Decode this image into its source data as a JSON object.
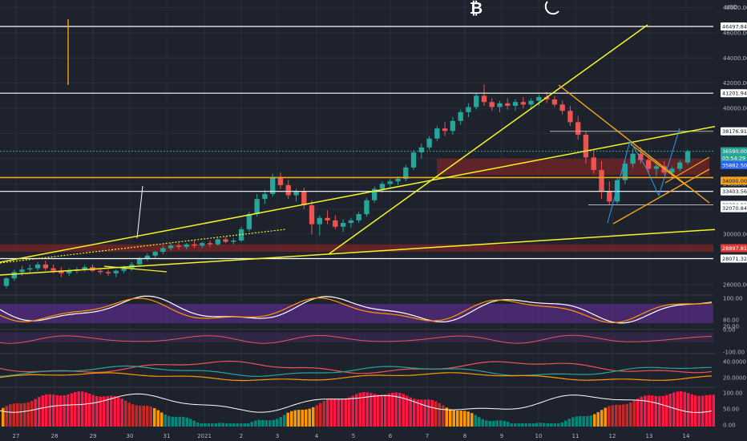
{
  "header": {
    "unit_label": "USD"
  },
  "icons": {
    "bitcoin": "bitcoin-icon",
    "moon": "moon-icon"
  },
  "colors": {
    "background": "#1e222d",
    "up": "#26a69a",
    "down": "#ef5350",
    "yellow_line": "#f5f527",
    "orange_line": "#f7a21b",
    "white_line": "#ffffff",
    "zone_fill": "#7a2525"
  },
  "chart_data": [
    {
      "type": "candlestick",
      "title": "",
      "price_axis": {
        "ticks": [
          {
            "label": "48000.00",
            "value": 48000
          },
          {
            "label": "46000.00",
            "value": 46000
          },
          {
            "label": "44000.00",
            "value": 44000
          },
          {
            "label": "42000.00",
            "value": 42000
          },
          {
            "label": "40000.00",
            "value": 40000
          },
          {
            "label": "38000.00",
            "value": 38000
          },
          {
            "label": "36000.00",
            "value": 36000
          },
          {
            "label": "34000.00",
            "value": 34000
          },
          {
            "label": "32000.00",
            "value": 32000
          },
          {
            "label": "30000.00",
            "value": 30000
          },
          {
            "label": "28000.00",
            "value": 28000
          },
          {
            "label": "26000.00",
            "value": 26000
          }
        ],
        "ylim": [
          25300,
          48600
        ]
      },
      "date_axis": [
        "27",
        "28",
        "29",
        "30",
        "31",
        "2021",
        "2",
        "3",
        "4",
        "5",
        "6",
        "7",
        "8",
        "9",
        "10",
        "11",
        "12",
        "13",
        "14"
      ],
      "price_tags": [
        {
          "label": "46497.84",
          "value": 46497.84,
          "style": "white"
        },
        {
          "label": "41201.94",
          "value": 41201.94,
          "style": "white"
        },
        {
          "label": "38176.91",
          "value": 38176.91,
          "style": "white"
        },
        {
          "label": "36590.00",
          "value": 36590,
          "style": "green"
        },
        {
          "label": "03:54:29",
          "value": 36050,
          "style": "green"
        },
        {
          "label": "35882.50",
          "value": 35482.5,
          "style": "blue"
        },
        {
          "label": "34000.00",
          "value": 34250,
          "style": "orange"
        },
        {
          "label": "33403.56",
          "value": 33403.56,
          "style": "white"
        },
        {
          "label": "32334.21",
          "value": 32334.21,
          "style": "white"
        },
        {
          "label": "32070.84",
          "value": 32070.84,
          "style": "white"
        },
        {
          "label": "28897.81",
          "value": 28897.81,
          "style": "red"
        },
        {
          "label": "28071.32",
          "value": 28071.32,
          "style": "white"
        }
      ],
      "horizontal_levels": [
        46497.84,
        41201.94,
        33403.56,
        28071.32,
        34500
      ],
      "candles_4h": [
        [
          25900,
          26600,
          25700,
          26500
        ],
        [
          26500,
          27200,
          26300,
          27000
        ],
        [
          27000,
          27500,
          26700,
          27200
        ],
        [
          27200,
          27600,
          26900,
          27300
        ],
        [
          27300,
          27800,
          27100,
          27600
        ],
        [
          27600,
          27900,
          27100,
          27300
        ],
        [
          27300,
          27600,
          26900,
          27100
        ],
        [
          27100,
          27400,
          26600,
          26900
        ],
        [
          26900,
          27300,
          26700,
          27100
        ],
        [
          27100,
          27400,
          26900,
          27200
        ],
        [
          27200,
          27600,
          27000,
          27400
        ],
        [
          27400,
          27600,
          27000,
          27100
        ],
        [
          27100,
          27300,
          26800,
          27000
        ],
        [
          27000,
          27200,
          26700,
          26900
        ],
        [
          26900,
          27200,
          26600,
          27100
        ],
        [
          27100,
          27500,
          26900,
          27300
        ],
        [
          27300,
          27800,
          27100,
          27600
        ],
        [
          27600,
          28200,
          27500,
          28100
        ],
        [
          28100,
          28500,
          27900,
          28300
        ],
        [
          28300,
          28700,
          28100,
          28600
        ],
        [
          28600,
          29100,
          28400,
          28900
        ],
        [
          28900,
          29300,
          28700,
          29100
        ],
        [
          29100,
          29300,
          28800,
          29000
        ],
        [
          29000,
          29300,
          28800,
          29200
        ],
        [
          29200,
          29500,
          28900,
          29100
        ],
        [
          29100,
          29400,
          28900,
          29300
        ],
        [
          29300,
          29500,
          29000,
          29200
        ],
        [
          29200,
          29700,
          29100,
          29600
        ],
        [
          29600,
          29800,
          29300,
          29400
        ],
        [
          29400,
          29700,
          29200,
          29500
        ],
        [
          29500,
          30600,
          29400,
          30400
        ],
        [
          30400,
          31800,
          30200,
          31600
        ],
        [
          31600,
          33200,
          31400,
          32800
        ],
        [
          32800,
          33500,
          32400,
          33200
        ],
        [
          33200,
          34800,
          33000,
          34500
        ],
        [
          34500,
          34900,
          33600,
          33900
        ],
        [
          33900,
          34300,
          32800,
          33100
        ],
        [
          33100,
          33600,
          32600,
          33400
        ],
        [
          33400,
          33700,
          32000,
          32300
        ],
        [
          32300,
          32700,
          30000,
          30800
        ],
        [
          30800,
          31500,
          29900,
          31300
        ],
        [
          31300,
          31900,
          30800,
          31100
        ],
        [
          31100,
          31500,
          30400,
          30600
        ],
        [
          30600,
          31200,
          30200,
          30900
        ],
        [
          30900,
          31300,
          30500,
          31100
        ],
        [
          31100,
          31800,
          30900,
          31600
        ],
        [
          31600,
          32900,
          31400,
          32700
        ],
        [
          32700,
          33800,
          32500,
          33600
        ],
        [
          33600,
          34200,
          33300,
          34000
        ],
        [
          34000,
          34400,
          33600,
          34200
        ],
        [
          34200,
          34600,
          33900,
          34400
        ],
        [
          34400,
          35500,
          34200,
          35300
        ],
        [
          35300,
          36700,
          35100,
          36500
        ],
        [
          36500,
          37200,
          36000,
          36900
        ],
        [
          36900,
          37800,
          36700,
          37600
        ],
        [
          37600,
          38600,
          37400,
          38400
        ],
        [
          38400,
          38900,
          37800,
          38200
        ],
        [
          38200,
          39300,
          37900,
          39000
        ],
        [
          39000,
          39900,
          38700,
          39700
        ],
        [
          39700,
          40400,
          39300,
          40100
        ],
        [
          40100,
          41200,
          39900,
          41000
        ],
        [
          41000,
          41900,
          40200,
          40500
        ],
        [
          40500,
          40800,
          39800,
          40100
        ],
        [
          40100,
          40600,
          39700,
          40400
        ],
        [
          40400,
          40800,
          39900,
          40200
        ],
        [
          40200,
          40700,
          39800,
          40500
        ],
        [
          40500,
          40900,
          40000,
          40300
        ],
        [
          40300,
          40800,
          39900,
          40600
        ],
        [
          40600,
          41100,
          40200,
          40900
        ],
        [
          40900,
          41300,
          40400,
          40700
        ],
        [
          40700,
          41000,
          40100,
          40300
        ],
        [
          40300,
          40600,
          39500,
          39800
        ],
        [
          39800,
          40200,
          38600,
          38900
        ],
        [
          38900,
          39400,
          37500,
          37900
        ],
        [
          37900,
          38200,
          35600,
          36100
        ],
        [
          36100,
          36700,
          34800,
          35100
        ],
        [
          35100,
          35800,
          32800,
          33400
        ],
        [
          33400,
          34200,
          32300,
          32600
        ],
        [
          32600,
          34500,
          32400,
          34300
        ],
        [
          34300,
          35800,
          34000,
          35600
        ],
        [
          35600,
          36800,
          35300,
          36400
        ],
        [
          36400,
          36900,
          35600,
          35900
        ],
        [
          35900,
          36200,
          34900,
          35200
        ],
        [
          35200,
          35700,
          34600,
          35400
        ],
        [
          35400,
          35800,
          34700,
          34900
        ],
        [
          34900,
          35400,
          34400,
          35200
        ],
        [
          35200,
          35900,
          35000,
          35700
        ],
        [
          35700,
          36700,
          35500,
          36590
        ]
      ],
      "indicators": [
        {
          "name": "stoch_rsi",
          "ticks": [
            "100.00",
            "80.00",
            "20.00"
          ]
        },
        {
          "name": "oscillator",
          "ticks": [
            "0.00",
            "-100.00"
          ]
        },
        {
          "name": "dmi",
          "ticks": [
            "40.0000",
            "20.0000"
          ]
        },
        {
          "name": "histogram",
          "ticks": [
            "100.00",
            "50.00",
            "0.00"
          ]
        }
      ]
    }
  ]
}
